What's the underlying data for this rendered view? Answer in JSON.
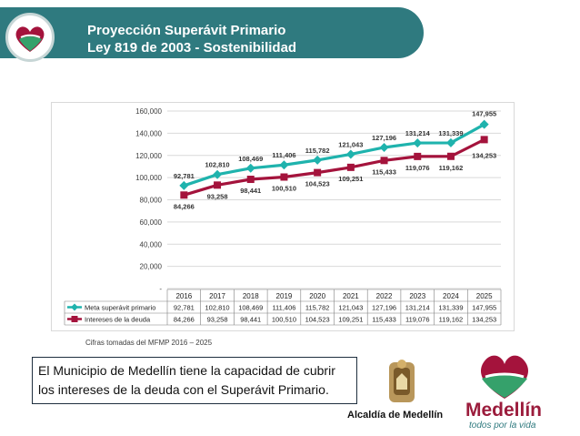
{
  "header": {
    "title_line1": "Proyección Superávit Primario",
    "title_line2": "Ley 819 de 2003 - Sostenibilidad"
  },
  "colors": {
    "header": "#2f7a7f",
    "series_meta": "#1fb3ad",
    "series_intereses": "#a4133c"
  },
  "chart_data": {
    "type": "line",
    "categories": [
      "2016",
      "2017",
      "2018",
      "2019",
      "2020",
      "2021",
      "2022",
      "2023",
      "2024",
      "2025"
    ],
    "ylim": [
      0,
      160000
    ],
    "yticks": [
      "-",
      "20,000",
      "40,000",
      "60,000",
      "80,000",
      "100,000",
      "120,000",
      "140,000",
      "160,000"
    ],
    "grid": true,
    "legend": "data table below chart",
    "series": [
      {
        "name": "Meta superávit primario",
        "values": [
          92781,
          102810,
          108469,
          111406,
          115782,
          121043,
          127196,
          131214,
          131339,
          147955
        ],
        "labels": [
          "92,781",
          "102,810",
          "108,469",
          "111,406",
          "115,782",
          "121,043",
          "127,196",
          "131,214",
          "131,339",
          "147,955"
        ]
      },
      {
        "name": "Intereses de la deuda",
        "values": [
          84266,
          93258,
          98441,
          100510,
          104523,
          109251,
          115433,
          119076,
          119162,
          134253
        ],
        "labels": [
          "84,266",
          "93,258",
          "98,441",
          "100,510",
          "104,523",
          "109,251",
          "115,433",
          "119,076",
          "119,162",
          "134,253"
        ]
      }
    ]
  },
  "note": "Cifras tomadas del MFMP 2016 – 2025",
  "textbox": "El Municipio de Medellín tiene la capacidad de cubrir los intereses de la deuda con el Superávit Primario.",
  "footer": {
    "alcaldia": "Alcaldía de Medellín",
    "brand": "Medellín",
    "tagline": "todos por la vida"
  }
}
